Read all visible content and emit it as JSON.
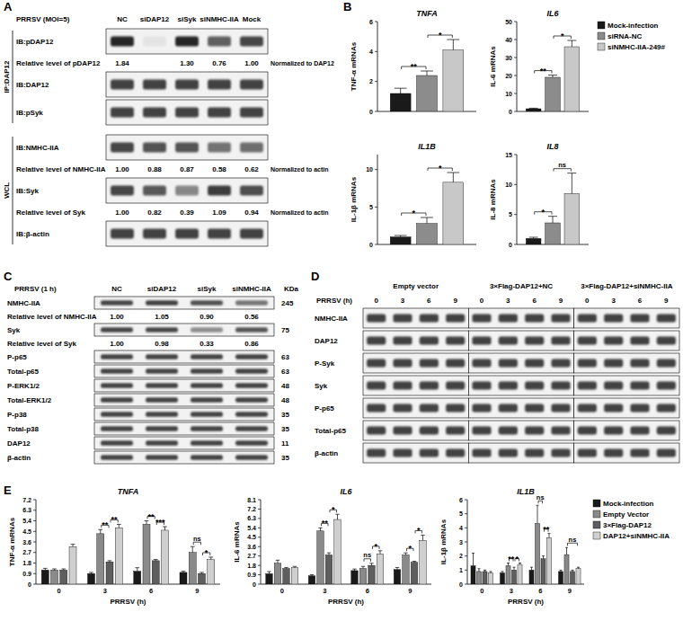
{
  "panel_labels": [
    "A",
    "B",
    "C",
    "D",
    "E"
  ],
  "blots": {
    "A": {
      "header": "PRRSV (MOI=5)",
      "lanes": [
        "NC",
        "siDAP12",
        "siSyk",
        "siNMHC-IIA",
        "Mock"
      ],
      "groups": [
        {
          "label": "IP:DAP12",
          "rows": [
            {
              "label": "IB:pDAP12"
            },
            {
              "label": "Relative level of pDAP12",
              "values": [
                "1.84",
                null,
                "1.30",
                "0.76",
                "1.00"
              ],
              "note": "Normalized to DAP12"
            },
            {
              "label": "IB:DAP12"
            },
            {
              "label": "IB:pSyk"
            }
          ]
        },
        {
          "label": "WCL",
          "rows": [
            {
              "label": "IB:NMHC-IIA"
            },
            {
              "label": "Relative level of NMHC-IIA",
              "values": [
                "1.00",
                "0.88",
                "0.87",
                "0.58",
                "0.62"
              ],
              "note": "Normalized to actin"
            },
            {
              "label": "IB:Syk"
            },
            {
              "label": "Relative level of Syk",
              "values": [
                "1.00",
                "0.82",
                "0.39",
                "1.09",
                "0.94"
              ],
              "note": "Normalized to actin"
            },
            {
              "label": "IB:β-actin"
            }
          ]
        }
      ]
    },
    "C": {
      "header": "PRRSV (1 h)",
      "lanes": [
        "NC",
        "siDAP12",
        "siSyk",
        "siNMHC-IIA"
      ],
      "unit": "KDa",
      "rows": [
        {
          "label": "NMHC-IIA",
          "kda": "245"
        },
        {
          "label": "Relative level of NMHC-IIA",
          "values": [
            "1.00",
            "1.05",
            "0.90",
            "0.56"
          ]
        },
        {
          "label": "Syk",
          "kda": "75"
        },
        {
          "label": "Relative level of Syk",
          "values": [
            "1.00",
            "0.98",
            "0.33",
            "0.86"
          ]
        },
        {
          "label": "P-p65",
          "kda": "63"
        },
        {
          "label": "Total-p65",
          "kda": "63"
        },
        {
          "label": "P-ERK1/2",
          "kda": "48"
        },
        {
          "label": "Total-ERK1/2",
          "kda": "48"
        },
        {
          "label": "P-p38",
          "kda": "35"
        },
        {
          "label": "Total-p38",
          "kda": "35"
        },
        {
          "label": "DAP12",
          "kda": "11"
        },
        {
          "label": "β-actin",
          "kda": "35"
        }
      ]
    },
    "D": {
      "row_header": "PRRSV (h)",
      "groups": [
        {
          "label": "Empty vector",
          "lanes": [
            "0",
            "3",
            "6",
            "9"
          ]
        },
        {
          "label": "3×Flag-DAP12+NC",
          "lanes": [
            "0",
            "3",
            "6",
            "9"
          ]
        },
        {
          "label": "3×Flag-DAP12+siNMHC-IIA",
          "lanes": [
            "0",
            "3",
            "6",
            "9"
          ]
        }
      ],
      "rows": [
        {
          "label": "NMHC-IIA"
        },
        {
          "label": "DAP12"
        },
        {
          "label": "P-Syk"
        },
        {
          "label": "Syk"
        },
        {
          "label": "P-p65"
        },
        {
          "label": "Total-p65"
        },
        {
          "label": "β-actin"
        }
      ]
    }
  },
  "chart_data": [
    {
      "type": "bar",
      "title": "TNFA",
      "y_label": "TNF-α mRNAs",
      "categories": [
        null
      ],
      "series": [
        {
          "name": "Mock-infection",
          "color": "#1a1a1a",
          "values": [
            1.2
          ],
          "errors": [
            0.35
          ]
        },
        {
          "name": "siRNA-NC",
          "color": "#8c8c8c",
          "values": [
            2.4
          ],
          "errors": [
            0.3
          ]
        },
        {
          "name": "siNMHC-IIA-249#",
          "color": "#c8c8c8",
          "values": [
            4.1
          ],
          "errors": [
            0.7
          ]
        }
      ],
      "ylim": [
        0,
        6
      ],
      "yticks": [
        0,
        2,
        4,
        6
      ],
      "annotations": [
        {
          "category": 0,
          "from": 0,
          "to": 1,
          "label": "**"
        },
        {
          "category": 0,
          "from": 1,
          "to": 2,
          "label": "*"
        }
      ]
    },
    {
      "type": "bar",
      "title": "IL6",
      "y_label": "IL-6 mRNAs",
      "categories": [
        null
      ],
      "legend": "right",
      "series": [
        {
          "name": "Mock-infection",
          "color": "#1a1a1a",
          "values": [
            1.5
          ],
          "errors": [
            0.3
          ]
        },
        {
          "name": "siRNA-NC",
          "color": "#8c8c8c",
          "values": [
            19
          ],
          "errors": [
            1.2
          ]
        },
        {
          "name": "siNMHC-IIA-249#",
          "color": "#c8c8c8",
          "values": [
            36
          ],
          "errors": [
            3.5
          ]
        }
      ],
      "ylim": [
        0,
        50
      ],
      "yticks": [
        0,
        10,
        20,
        30,
        40,
        50
      ],
      "annotations": [
        {
          "category": 0,
          "from": 0,
          "to": 1,
          "label": "**"
        },
        {
          "category": 0,
          "from": 1,
          "to": 2,
          "label": "*"
        }
      ]
    },
    {
      "type": "bar",
      "title": "IL1B",
      "y_label": "IL-1β mRNAs",
      "categories": [
        null
      ],
      "series": [
        {
          "name": "Mock-infection",
          "color": "#1a1a1a",
          "values": [
            1
          ],
          "errors": [
            0.2
          ]
        },
        {
          "name": "siRNA-NC",
          "color": "#8c8c8c",
          "values": [
            2.8
          ],
          "errors": [
            0.8
          ]
        },
        {
          "name": "siNMHC-IIA-249#",
          "color": "#c8c8c8",
          "values": [
            8.3
          ],
          "errors": [
            1.3
          ]
        }
      ],
      "ylim": [
        0,
        12
      ],
      "yticks": [
        0,
        5,
        10
      ],
      "annotations": [
        {
          "category": 0,
          "from": 0,
          "to": 1,
          "label": "*"
        },
        {
          "category": 0,
          "from": 1,
          "to": 2,
          "label": "*"
        }
      ]
    },
    {
      "type": "bar",
      "title": "IL8",
      "y_label": "IL-8 mRNAs",
      "categories": [
        null
      ],
      "series": [
        {
          "name": "Mock-infection",
          "color": "#1a1a1a",
          "values": [
            1
          ],
          "errors": [
            0.2
          ]
        },
        {
          "name": "siRNA-NC",
          "color": "#8c8c8c",
          "values": [
            3.6
          ],
          "errors": [
            1.1
          ]
        },
        {
          "name": "siNMHC-IIA-249#",
          "color": "#c8c8c8",
          "values": [
            8.5
          ],
          "errors": [
            3.4
          ]
        }
      ],
      "ylim": [
        0,
        15
      ],
      "yticks": [
        0,
        5,
        10,
        15
      ],
      "annotations": [
        {
          "category": 0,
          "from": 0,
          "to": 1,
          "label": "*"
        },
        {
          "category": 0,
          "from": 1,
          "to": 2,
          "label": "ns"
        }
      ]
    },
    {
      "type": "bar",
      "title": "TNFA",
      "y_label": "TNF-α mRNAs",
      "x_label": "PRRSV (h)",
      "categories": [
        "0",
        "3",
        "6",
        "9"
      ],
      "series": [
        {
          "name": "Mock-infection",
          "color": "#1a1a1a",
          "values": [
            1.2,
            0.9,
            1.1,
            1.0
          ],
          "errors": [
            0.15,
            0.1,
            0.3,
            0.1
          ]
        },
        {
          "name": "Empty Vector",
          "color": "#8a8a8a",
          "values": [
            1.2,
            4.3,
            5.1,
            2.7
          ],
          "errors": [
            0.1,
            0.35,
            0.3,
            0.5
          ]
        },
        {
          "name": "3×Flag-DAP12",
          "color": "#5e5e5e",
          "values": [
            1.2,
            1.9,
            2.0,
            0.9
          ],
          "errors": [
            0.1,
            0.1,
            0.1,
            0.1
          ]
        },
        {
          "name": "DAP12+siNMHC-IIA",
          "color": "#cfcfcf",
          "values": [
            3.2,
            4.8,
            4.6,
            2.1
          ],
          "errors": [
            0.2,
            0.3,
            0.3,
            0.2
          ]
        }
      ],
      "ylim": [
        0,
        7.2
      ],
      "yticks": [
        0,
        0.9,
        1.8,
        2.7,
        3.6,
        4.5,
        5.4,
        6.3,
        7.2
      ],
      "annotations": [
        {
          "category": 1,
          "from": 1,
          "to": 2,
          "label": "**"
        },
        {
          "category": 1,
          "from": 2,
          "to": 3,
          "label": "**"
        },
        {
          "category": 2,
          "from": 1,
          "to": 2,
          "label": "**"
        },
        {
          "category": 2,
          "from": 2,
          "to": 3,
          "label": "***"
        },
        {
          "category": 3,
          "from": 1,
          "to": 2,
          "label": "ns"
        },
        {
          "category": 3,
          "from": 2,
          "to": 3,
          "label": "*"
        }
      ]
    },
    {
      "type": "bar",
      "title": "IL6",
      "y_label": "IL-6 mRNAs",
      "x_label": "PRRSV (h)",
      "categories": [
        "0",
        "3",
        "6",
        "9"
      ],
      "series": [
        {
          "name": "Mock-infection",
          "color": "#1a1a1a",
          "values": [
            1.0,
            0.8,
            1.3,
            1.4
          ],
          "errors": [
            0.2,
            0.1,
            0.15,
            0.2
          ]
        },
        {
          "name": "Empty Vector",
          "color": "#8a8a8a",
          "values": [
            2.0,
            5.1,
            1.5,
            2.8
          ],
          "errors": [
            0.3,
            0.3,
            0.2,
            0.2
          ]
        },
        {
          "name": "3×Flag-DAP12",
          "color": "#5e5e5e",
          "values": [
            1.5,
            2.8,
            1.8,
            2.1
          ],
          "errors": [
            0.1,
            0.2,
            0.2,
            0.1
          ]
        },
        {
          "name": "DAP12+siNMHC-IIA",
          "color": "#cfcfcf",
          "values": [
            1.6,
            6.2,
            2.9,
            4.2
          ],
          "errors": [
            0.1,
            0.5,
            0.3,
            0.5
          ]
        }
      ],
      "ylim": [
        0,
        8.1
      ],
      "yticks": [
        0,
        0.9,
        1.8,
        2.7,
        3.6,
        4.5,
        5.4,
        6.3,
        7.2,
        8.1
      ],
      "annotations": [
        {
          "category": 1,
          "from": 1,
          "to": 2,
          "label": "**"
        },
        {
          "category": 1,
          "from": 2,
          "to": 3,
          "label": "*"
        },
        {
          "category": 2,
          "from": 1,
          "to": 2,
          "label": "ns"
        },
        {
          "category": 2,
          "from": 2,
          "to": 3,
          "label": "*"
        },
        {
          "category": 3,
          "from": 1,
          "to": 2,
          "label": "*"
        },
        {
          "category": 3,
          "from": 2,
          "to": 3,
          "label": "*"
        }
      ]
    },
    {
      "type": "bar",
      "title": "IL1B",
      "y_label": "IL-1β mRNAs",
      "x_label": "PRRSV (h)",
      "categories": [
        "0",
        "3",
        "6",
        "9"
      ],
      "legend": "right",
      "series": [
        {
          "name": "Mock-infection",
          "color": "#1a1a1a",
          "values": [
            1.3,
            0.8,
            1.0,
            0.9
          ],
          "errors": [
            0.9,
            0.1,
            0.2,
            0.1
          ]
        },
        {
          "name": "Empty Vector",
          "color": "#8a8a8a",
          "values": [
            0.9,
            1.3,
            4.3,
            2.1
          ],
          "errors": [
            0.2,
            0.2,
            1.3,
            0.5
          ]
        },
        {
          "name": "3×Flag-DAP12",
          "color": "#5e5e5e",
          "values": [
            0.9,
            1.0,
            1.8,
            0.9
          ],
          "errors": [
            0.1,
            0.2,
            0.2,
            0.1
          ]
        },
        {
          "name": "DAP12+siNMHC-IIA",
          "color": "#cfcfcf",
          "values": [
            0.8,
            1.4,
            3.3,
            1.1
          ],
          "errors": [
            0.1,
            0.1,
            0.3,
            0.1
          ]
        }
      ],
      "ylim": [
        0,
        6
      ],
      "yticks": [
        0,
        1,
        2,
        3,
        4,
        5,
        6
      ],
      "annotations": [
        {
          "category": 1,
          "from": 1,
          "to": 2,
          "label": "**"
        },
        {
          "category": 1,
          "from": 2,
          "to": 3,
          "label": "*"
        },
        {
          "category": 2,
          "from": 1,
          "to": 2,
          "label": "ns"
        },
        {
          "category": 2,
          "from": 2,
          "to": 3,
          "label": "**"
        },
        {
          "category": 3,
          "from": 1,
          "to": 3,
          "label": "ns"
        }
      ]
    }
  ]
}
